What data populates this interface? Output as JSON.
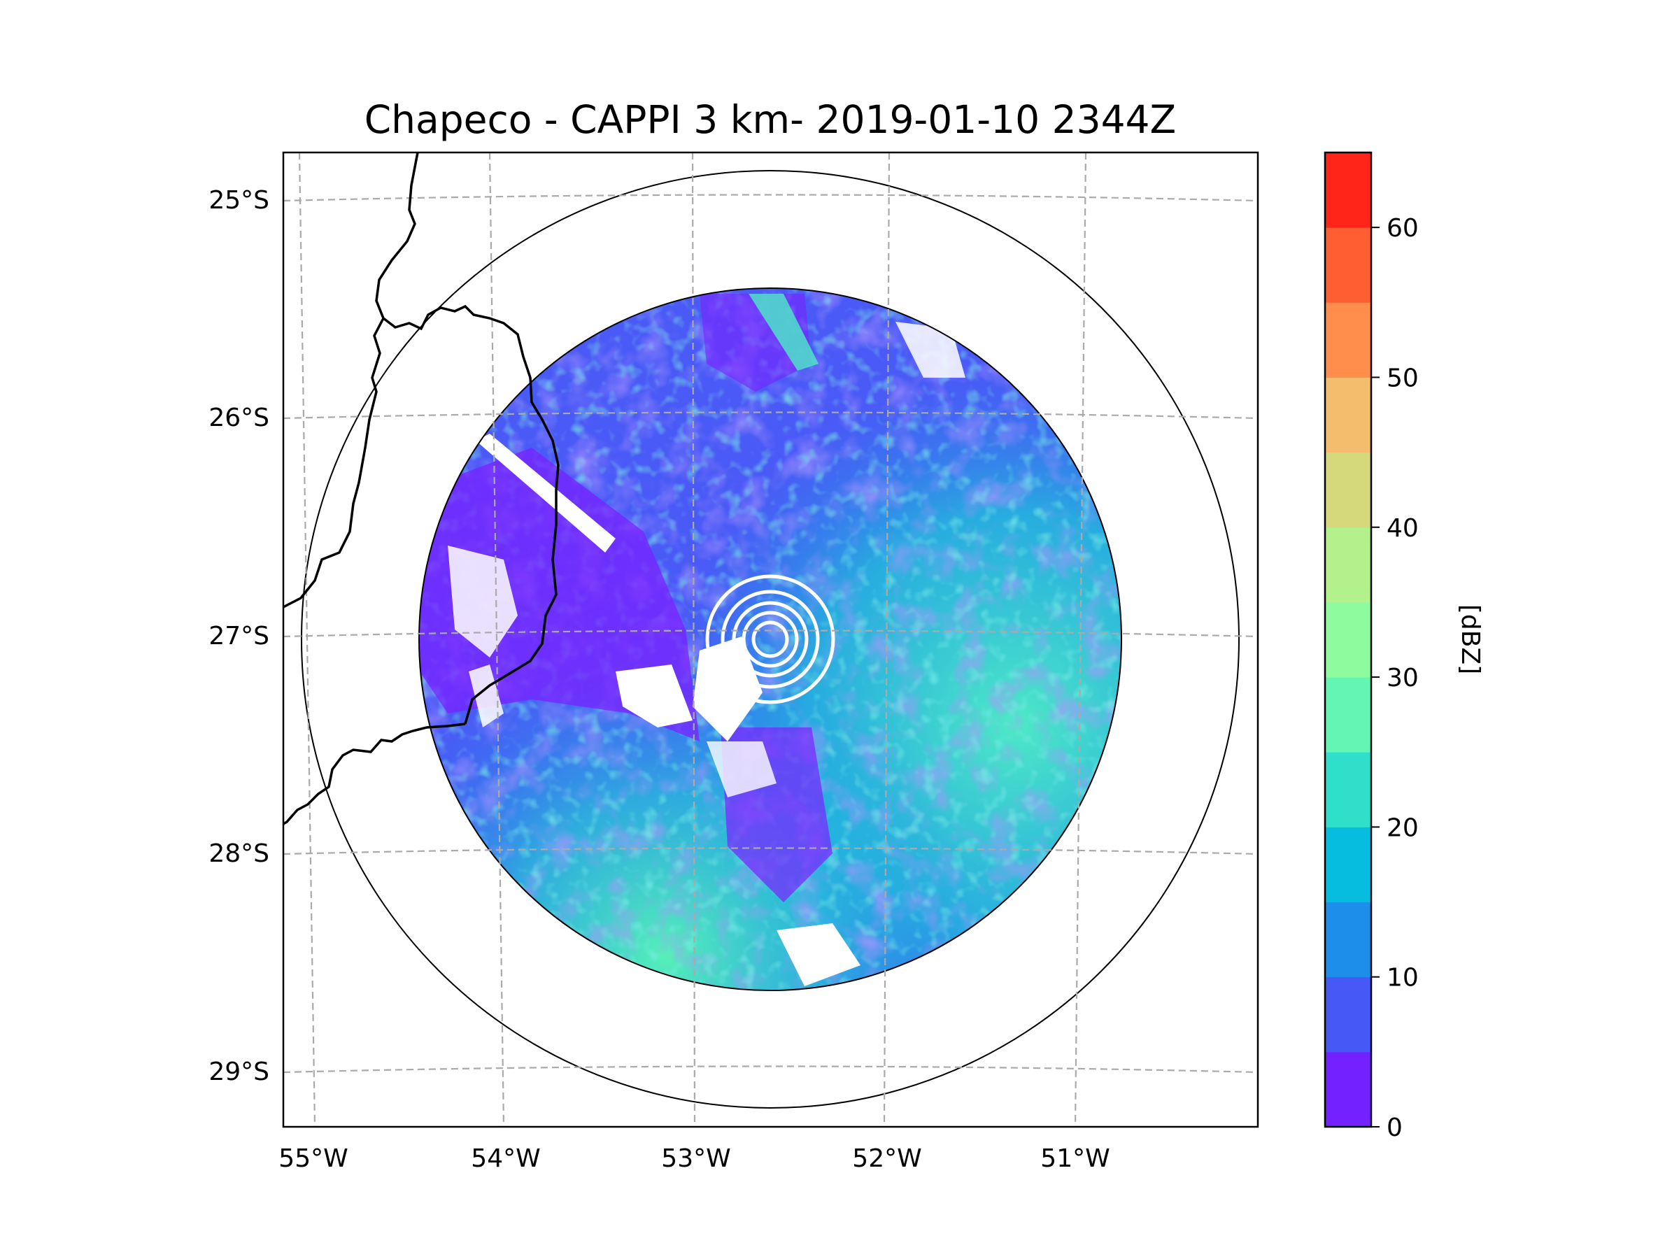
{
  "chart_data": {
    "type": "heatmap",
    "title": "Chapeco - CAPPI 3 km- 2019-01-10 2344Z",
    "x_ticks": [
      "55°W",
      "54°W",
      "53°W",
      "52°W",
      "51°W"
    ],
    "x_tick_values": [
      -55,
      -54,
      -53,
      -52,
      -51
    ],
    "y_ticks": [
      "25°S",
      "26°S",
      "27°S",
      "28°S",
      "29°S"
    ],
    "y_tick_values": [
      -25,
      -26,
      -27,
      -28,
      -29
    ],
    "xlim": [
      -55.17,
      -50.04
    ],
    "ylim": [
      -29.28,
      -24.78
    ],
    "radar_center": {
      "lon": -52.6,
      "lat": -27.0
    },
    "colorbar": {
      "label": "[dBZ]",
      "levels": [
        0,
        5,
        10,
        15,
        20,
        25,
        30,
        35,
        40,
        45,
        50,
        55,
        60,
        65
      ],
      "tick_values": [
        0,
        10,
        20,
        30,
        40,
        50,
        60
      ],
      "tick_labels": [
        "0",
        "10",
        "20",
        "30",
        "40",
        "50",
        "60"
      ],
      "colors": [
        "#7321ff",
        "#4659f7",
        "#1d8eea",
        "#06bde0",
        "#30dfca",
        "#63f5b3",
        "#8efb9f",
        "#b2f18b",
        "#d6d87c",
        "#f4bc6d",
        "#ff8e4c",
        "#ff5e33",
        "#ff2518"
      ]
    }
  }
}
